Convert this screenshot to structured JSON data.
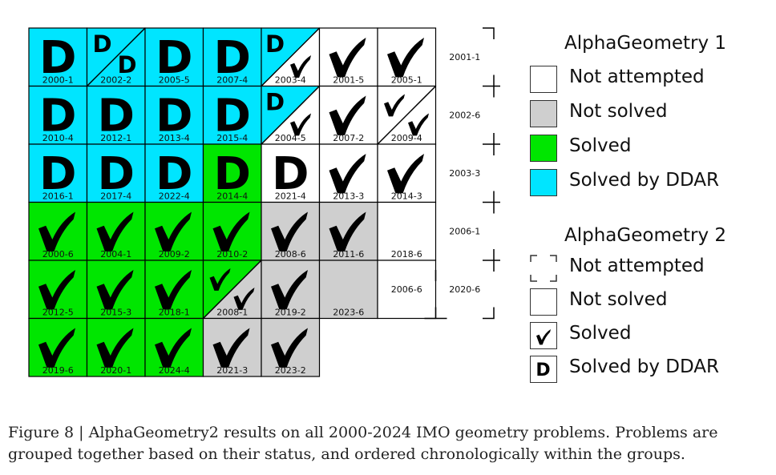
{
  "colors": {
    "solved_by_ddar": "#00e5ff",
    "solved": "#00e600",
    "not_solved": "#cfcfcf",
    "not_attempted": "#ffffff"
  },
  "grid": {
    "rows": [
      [
        {
          "label": "2000-1",
          "ag1": "ddar",
          "ag2": "D"
        },
        {
          "label": "2002-2",
          "ag1": "ddar",
          "ag2": "DD"
        },
        {
          "label": "2005-5",
          "ag1": "ddar",
          "ag2": "D"
        },
        {
          "label": "2007-4",
          "ag1": "ddar",
          "ag2": "D"
        },
        {
          "label": "2003-4",
          "ag1": "ddar_split",
          "ag2": "DV"
        },
        {
          "label": "2001-5",
          "ag1": "none",
          "ag2": "V"
        },
        {
          "label": "2005-1",
          "ag1": "none",
          "ag2": "V"
        },
        {
          "label": "2001-1",
          "ag1": "none",
          "ag2": "none"
        }
      ],
      [
        {
          "label": "2010-4",
          "ag1": "ddar",
          "ag2": "D"
        },
        {
          "label": "2012-1",
          "ag1": "ddar",
          "ag2": "D"
        },
        {
          "label": "2013-4",
          "ag1": "ddar",
          "ag2": "D"
        },
        {
          "label": "2015-4",
          "ag1": "ddar",
          "ag2": "D"
        },
        {
          "label": "2004-5",
          "ag1": "ddar_split",
          "ag2": "DV"
        },
        {
          "label": "2007-2",
          "ag1": "none",
          "ag2": "V"
        },
        {
          "label": "2009-4",
          "ag1": "none",
          "ag2": "VV"
        },
        {
          "label": "2002-6",
          "ag1": "none",
          "ag2": "none"
        }
      ],
      [
        {
          "label": "2016-1",
          "ag1": "ddar",
          "ag2": "D"
        },
        {
          "label": "2017-4",
          "ag1": "ddar",
          "ag2": "D"
        },
        {
          "label": "2022-4",
          "ag1": "ddar",
          "ag2": "D"
        },
        {
          "label": "2014-4",
          "ag1": "solved",
          "ag2": "D"
        },
        {
          "label": "2021-4",
          "ag1": "none",
          "ag2": "D"
        },
        {
          "label": "2013-3",
          "ag1": "none",
          "ag2": "V"
        },
        {
          "label": "2014-3",
          "ag1": "none",
          "ag2": "V"
        },
        {
          "label": "2003-3",
          "ag1": "none",
          "ag2": "none"
        }
      ],
      [
        {
          "label": "2000-6",
          "ag1": "solved",
          "ag2": "V"
        },
        {
          "label": "2004-1",
          "ag1": "solved",
          "ag2": "V"
        },
        {
          "label": "2009-2",
          "ag1": "solved",
          "ag2": "V"
        },
        {
          "label": "2010-2",
          "ag1": "solved",
          "ag2": "V"
        },
        {
          "label": "2008-6",
          "ag1": "unsolved",
          "ag2": "V"
        },
        {
          "label": "2011-6",
          "ag1": "unsolved",
          "ag2": "V"
        },
        {
          "label": "2018-6",
          "ag1": "none",
          "ag2": "empty"
        },
        {
          "label": "2006-1",
          "ag1": "none",
          "ag2": "none"
        }
      ],
      [
        {
          "label": "2012-5",
          "ag1": "solved",
          "ag2": "V"
        },
        {
          "label": "2015-3",
          "ag1": "solved",
          "ag2": "V"
        },
        {
          "label": "2018-1",
          "ag1": "solved",
          "ag2": "V"
        },
        {
          "label": "2008-1",
          "ag1": "solved_split",
          "ag2": "VV"
        },
        {
          "label": "2019-2",
          "ag1": "unsolved",
          "ag2": "V"
        },
        {
          "label": "2023-6",
          "ag1": "unsolved",
          "ag2": "empty"
        },
        {
          "label": "2006-6",
          "ag1": "none",
          "ag2": "empty"
        },
        {
          "label": "2020-6",
          "ag1": "none",
          "ag2": "none"
        }
      ],
      [
        {
          "label": "2019-6",
          "ag1": "solved",
          "ag2": "V"
        },
        {
          "label": "2020-1",
          "ag1": "solved",
          "ag2": "V"
        },
        {
          "label": "2024-4",
          "ag1": "solved",
          "ag2": "V"
        },
        {
          "label": "2021-3",
          "ag1": "unsolved",
          "ag2": "V"
        },
        {
          "label": "2023-2",
          "ag1": "unsolved",
          "ag2": "V"
        }
      ]
    ]
  },
  "legend": {
    "ag1": {
      "title": "AlphaGeometry 1",
      "items": [
        {
          "label": "Not attempted",
          "fill": "#ffffff",
          "mark": "none"
        },
        {
          "label": "Not solved",
          "fill": "#cfcfcf",
          "mark": "none"
        },
        {
          "label": "Solved",
          "fill": "#00e600",
          "mark": "none"
        },
        {
          "label": "Solved by DDAR",
          "fill": "#00e5ff",
          "mark": "none"
        }
      ]
    },
    "ag2": {
      "title": "AlphaGeometry 2",
      "items": [
        {
          "label": "Not attempted",
          "fill": "#ffffff",
          "mark": "dashed"
        },
        {
          "label": "Not solved",
          "fill": "#ffffff",
          "mark": "none"
        },
        {
          "label": "Solved",
          "fill": "#ffffff",
          "mark": "check"
        },
        {
          "label": "Solved by DDAR",
          "fill": "#ffffff",
          "mark": "D"
        }
      ]
    }
  },
  "caption": "Figure 8 | AlphaGeometry2 results on all 2000-2024 IMO geometry problems. Problems are grouped together based on their status, and ordered chronologically within the groups."
}
